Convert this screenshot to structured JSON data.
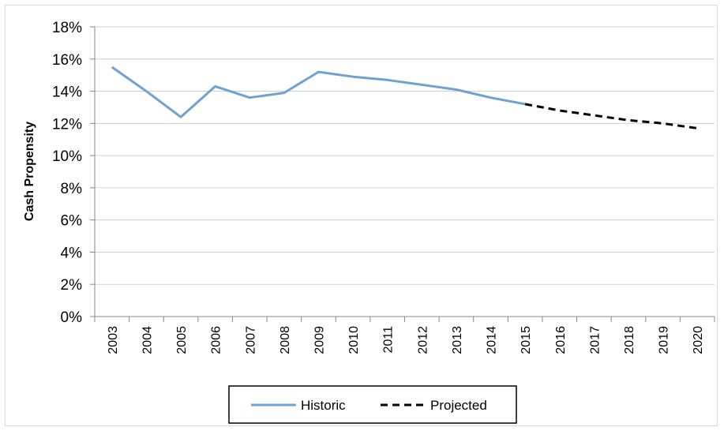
{
  "chart_data": {
    "type": "line",
    "ylabel": "Cash Propensity",
    "xlabel": "",
    "ylim": [
      0,
      18
    ],
    "y_ticks": [
      0,
      2,
      4,
      6,
      8,
      10,
      12,
      14,
      16,
      18
    ],
    "y_tick_labels": [
      "0%",
      "2%",
      "4%",
      "6%",
      "8%",
      "10%",
      "12%",
      "14%",
      "16%",
      "18%"
    ],
    "categories": [
      "2003",
      "2004",
      "2005",
      "2006",
      "2007",
      "2008",
      "2009",
      "2010",
      "2011",
      "2012",
      "2013",
      "2014",
      "2015",
      "2016",
      "2017",
      "2018",
      "2019",
      "2020"
    ],
    "grid": "horizontal",
    "legend_position": "bottom",
    "series": [
      {
        "name": "Historic",
        "style": "solid",
        "color": "#6fa1d3",
        "x": [
          "2003",
          "2004",
          "2005",
          "2006",
          "2007",
          "2008",
          "2009",
          "2010",
          "2011",
          "2012",
          "2013",
          "2014",
          "2015"
        ],
        "values": [
          15.5,
          14.0,
          12.4,
          14.3,
          13.6,
          13.9,
          15.2,
          14.9,
          14.7,
          14.4,
          14.1,
          13.6,
          13.2
        ]
      },
      {
        "name": "Projected",
        "style": "dashed",
        "color": "#000000",
        "x": [
          "2015",
          "2016",
          "2017",
          "2018",
          "2019",
          "2020"
        ],
        "values": [
          13.2,
          12.8,
          12.5,
          12.2,
          12.0,
          11.7
        ]
      }
    ]
  }
}
